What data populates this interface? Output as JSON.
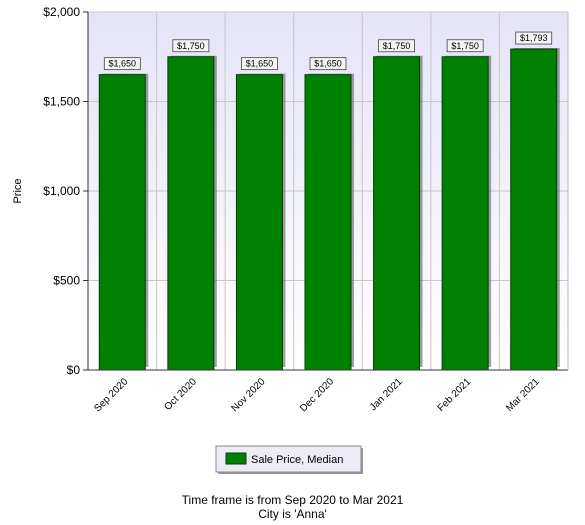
{
  "chart_data": {
    "type": "bar",
    "categories": [
      "Sep 2020",
      "Oct 2020",
      "Nov 2020",
      "Dec 2020",
      "Jan 2021",
      "Feb 2021",
      "Mar 2021"
    ],
    "series": [
      {
        "name": "Sale Price, Median",
        "values": [
          1650,
          1750,
          1650,
          1650,
          1750,
          1750,
          1793
        ],
        "data_labels": [
          "$1,650",
          "$1,750",
          "$1,650",
          "$1,650",
          "$1,750",
          "$1,750",
          "$1,793"
        ]
      }
    ],
    "ylabel": "Price",
    "ylim": [
      0,
      2000
    ],
    "yticks": [
      0,
      500,
      1000,
      1500,
      2000
    ],
    "ytick_labels": [
      "$0",
      "$500",
      "$1,000",
      "$1,500",
      "$2,000"
    ],
    "grid": true,
    "legend": "bottom-center",
    "colors": {
      "bar": "#008000",
      "bar_edge": "#0a3d0a",
      "plot_bg_top": "#e4e4f6",
      "plot_bg_bottom": "#ffffff",
      "grid": "#c8c8c8"
    }
  },
  "footer": {
    "line1": "Time frame is from Sep 2020 to Mar 2021",
    "line2": "City is 'Anna'"
  }
}
